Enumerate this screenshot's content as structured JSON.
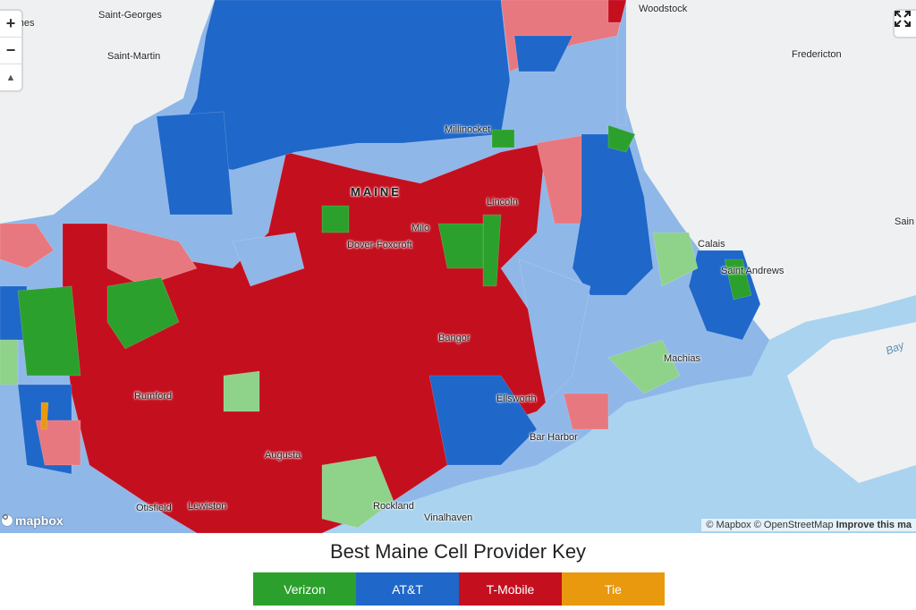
{
  "map": {
    "places": [
      {
        "label": "Saint-Georges",
        "type": "city"
      },
      {
        "label": "d Mines",
        "type": "city"
      },
      {
        "label": "Saint-Martin",
        "type": "city"
      },
      {
        "label": "Woodstock",
        "type": "city"
      },
      {
        "label": "Fredericton",
        "type": "city"
      },
      {
        "label": "Millinocket",
        "type": "city"
      },
      {
        "label": "MAINE",
        "type": "state"
      },
      {
        "label": "Lincoln",
        "type": "city"
      },
      {
        "label": "Milo",
        "type": "city"
      },
      {
        "label": "Dover-Foxcroft",
        "type": "city"
      },
      {
        "label": "Calais",
        "type": "city"
      },
      {
        "label": "Saint Andrews",
        "type": "city"
      },
      {
        "label": "Sain",
        "type": "city"
      },
      {
        "label": "Bangor",
        "type": "city"
      },
      {
        "label": "Machias",
        "type": "city"
      },
      {
        "label": "Bay",
        "type": "water"
      },
      {
        "label": "Rumford",
        "type": "city"
      },
      {
        "label": "Ellsworth",
        "type": "city"
      },
      {
        "label": "Bar Harbor",
        "type": "city"
      },
      {
        "label": "Augusta",
        "type": "city"
      },
      {
        "label": "Otisfield",
        "type": "city"
      },
      {
        "label": "Lewiston",
        "type": "city"
      },
      {
        "label": "Rockland",
        "type": "city"
      },
      {
        "label": "Vinalhaven",
        "type": "city"
      }
    ],
    "controls": {
      "zoom_in": "+",
      "zoom_out": "−",
      "compass": "▲"
    },
    "logo_text": "mapbox",
    "attribution": {
      "mapbox": "© Mapbox",
      "osm": "© OpenStreetMap",
      "improve": "Improve this ma"
    }
  },
  "key": {
    "title": "Best Maine Cell Provider Key",
    "items": [
      {
        "label": "Verizon",
        "color": "#2ca02c"
      },
      {
        "label": "AT&T",
        "color": "#1f67c9"
      },
      {
        "label": "T-Mobile",
        "color": "#c40f1f"
      },
      {
        "label": "Tie",
        "color": "#e8990e"
      }
    ]
  },
  "colors": {
    "water": "#a9d3ef",
    "land": "#eef0f2",
    "verizon": "#2ca02c",
    "verizon_light": "#8fd28a",
    "att": "#1f67c9",
    "att_light": "#8fb7e8",
    "tmobile": "#c40f1f",
    "tmobile_light": "#e8787f",
    "tie": "#e8990e"
  }
}
